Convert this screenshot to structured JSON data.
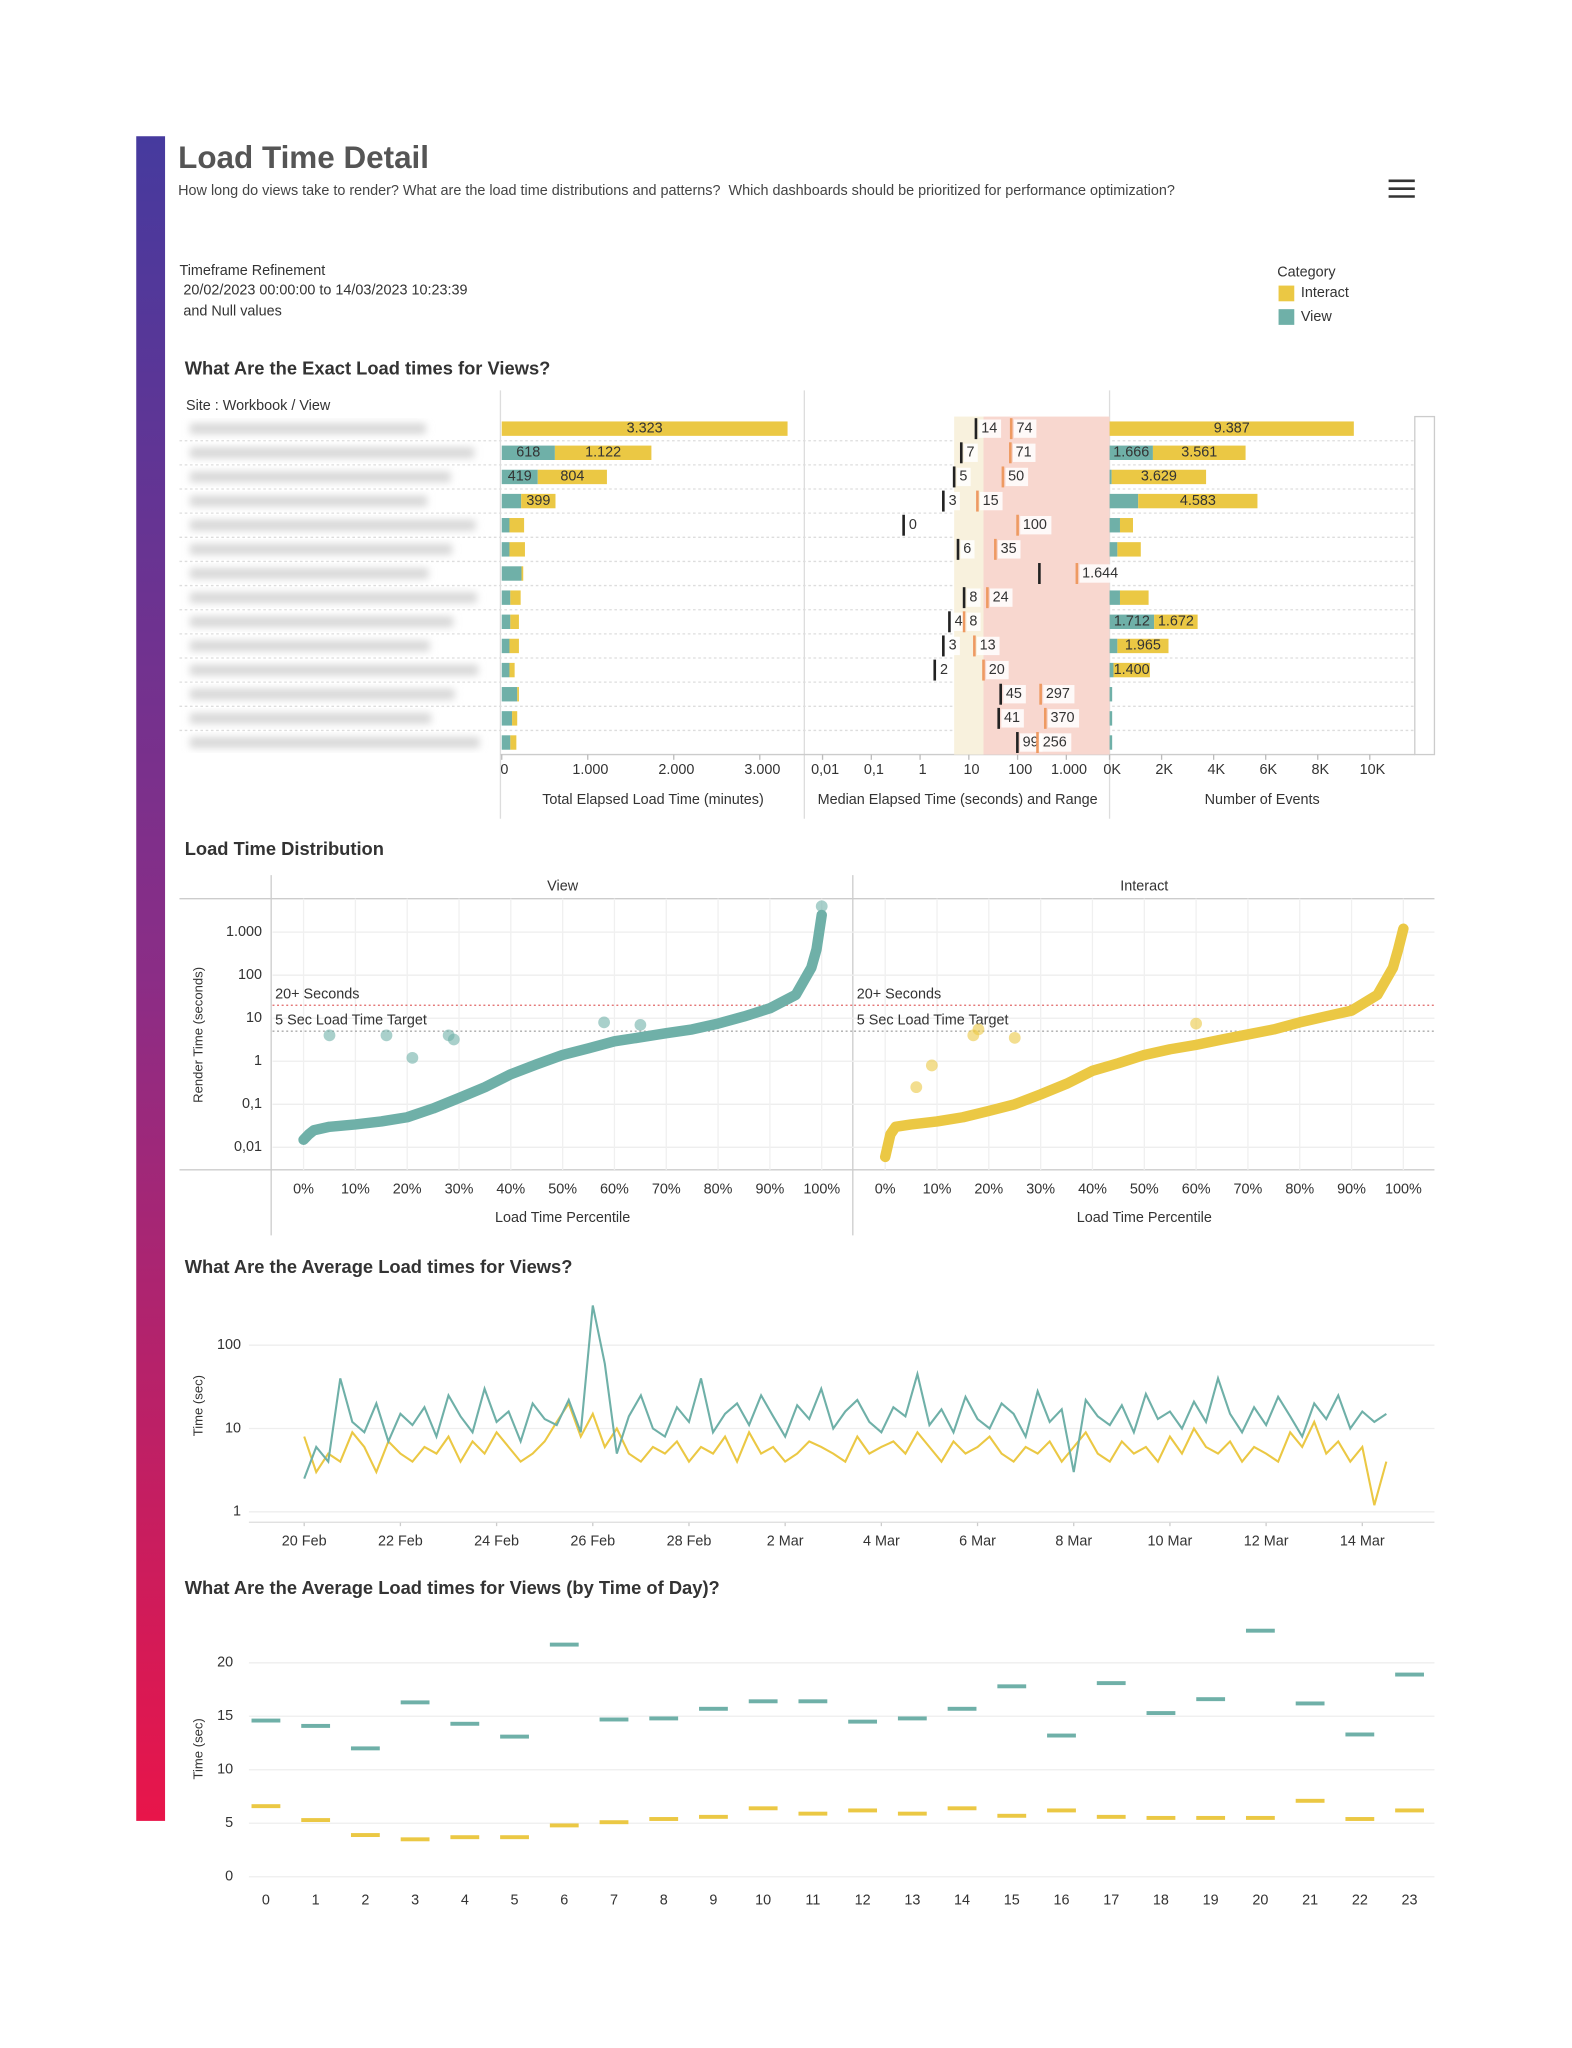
{
  "header": {
    "title": "Load Time Detail",
    "subtitle": "How long do views take to render? What are the load time distributions and patterns?  Which dashboards should be prioritized for performance optimization?"
  },
  "filter": {
    "label": "Timeframe Refinement",
    "range": "20/02/2023 00:00:00 to 14/03/2023 10:23:39",
    "note": "and Null values"
  },
  "legend": {
    "title": "Category",
    "items": [
      {
        "name": "Interact",
        "color": "#ebc844"
      },
      {
        "name": "View",
        "color": "#6fb0a8"
      }
    ]
  },
  "chart_data": [
    {
      "type": "hbar",
      "title": "What Are the Exact Load times for Views?",
      "row_header": "Site : Workbook / View",
      "xlabel": "Total Elapsed Load Time (minutes)",
      "xlim": [
        0,
        3518
      ],
      "xticks": [
        0,
        {
          "value": 1000,
          "label": "1.000"
        },
        {
          "value": 2000,
          "label": "2.000"
        },
        {
          "value": 3000,
          "label": "3.000"
        }
      ],
      "series": [
        {
          "color": "#6fb0a8",
          "values": [
            0,
            618,
            419,
            226,
            90,
            90,
            230,
            100,
            100,
            90,
            90,
            180,
            120,
            100
          ],
          "value_labels": [
            null,
            "618",
            "419",
            null,
            null,
            null,
            null,
            null,
            null,
            null,
            null,
            null,
            null,
            null
          ]
        },
        {
          "color": "#ebc844",
          "values": [
            3323,
            1122,
            804,
            399,
            170,
            180,
            20,
            120,
            100,
            110,
            60,
            20,
            60,
            70
          ],
          "value_labels": [
            "3.323",
            "1.122",
            "804",
            "399",
            null,
            null,
            null,
            null,
            null,
            null,
            null,
            null,
            null,
            null
          ]
        }
      ]
    },
    {
      "type": "range",
      "xlabel": "Median Elapsed Time (seconds) and Range",
      "xlog": true,
      "xlim": [
        0.0045,
        7700
      ],
      "xticks": [
        {
          "value": 0.01,
          "label": "0,01"
        },
        {
          "value": 0.1,
          "label": "0,1"
        },
        1,
        10,
        100,
        {
          "value": 1000,
          "label": "1.000"
        }
      ],
      "bands": [
        {
          "from": 5,
          "to": 20,
          "color": "#f8f1dd"
        },
        {
          "from": 20,
          "color": "#f8d7cf"
        }
      ],
      "series": [
        {
          "color": "#222222",
          "values": [
            14,
            7,
            5,
            3,
            0.46,
            6,
            280,
            8,
            4,
            3,
            2,
            45,
            41,
            99
          ],
          "value_labels": [
            "14",
            "7",
            "5",
            "3",
            "0",
            "6",
            null,
            "8",
            "4",
            "3",
            "2",
            "45",
            "41",
            "99"
          ]
        },
        {
          "color": "#ee9a62",
          "values": [
            74,
            71,
            50,
            15,
            100,
            35,
            1644,
            24,
            8,
            13,
            20,
            297,
            370,
            256
          ],
          "value_labels": [
            "74",
            "71",
            "50",
            "15",
            "100",
            "35",
            "1.644",
            "24",
            "8",
            "13",
            "20",
            "297",
            "370",
            "256"
          ]
        }
      ]
    },
    {
      "type": "hbar",
      "xlabel": "Number of Events",
      "xlim": [
        0,
        11730
      ],
      "xticks": [
        {
          "value": 0,
          "label": "0K"
        },
        {
          "value": 2000,
          "label": "2K"
        },
        {
          "value": 4000,
          "label": "4K"
        },
        {
          "value": 6000,
          "label": "6K"
        },
        {
          "value": 8000,
          "label": "8K"
        },
        {
          "value": 10000,
          "label": "10K"
        }
      ],
      "series": [
        {
          "color": "#6fb0a8",
          "values": [
            0,
            1666,
            80,
            1100,
            400,
            300,
            0,
            400,
            1712,
            300,
            150,
            100,
            100,
            100
          ],
          "value_labels": [
            null,
            "1.666",
            null,
            null,
            null,
            null,
            null,
            null,
            "1.712",
            null,
            null,
            null,
            null,
            null
          ]
        },
        {
          "color": "#ebc844",
          "values": [
            9387,
            3561,
            3629,
            4583,
            500,
            900,
            0,
            1100,
            1672,
            1965,
            1400,
            0,
            0,
            0
          ],
          "value_labels": [
            "9.387",
            "3.561",
            "3.629",
            "4.583",
            null,
            null,
            null,
            null,
            "1.672",
            "1.965",
            "1.400",
            null,
            null,
            null
          ]
        }
      ]
    },
    {
      "type": "scatter",
      "title": "Load Time Distribution",
      "ylabel": "Render Time (seconds)",
      "xlabel": "Load Time Percentile",
      "ylog": true,
      "ylim": [
        0.003,
        6000
      ],
      "yticks": [
        {
          "value": 0.01,
          "label": "0,01"
        },
        {
          "value": 0.1,
          "label": "0,1"
        },
        1,
        10,
        100,
        {
          "value": 1000,
          "label": "1.000"
        }
      ],
      "xlim": [
        -6,
        106
      ],
      "xticks": [
        {
          "value": 0,
          "label": "0%"
        },
        {
          "value": 10,
          "label": "10%"
        },
        {
          "value": 20,
          "label": "20%"
        },
        {
          "value": 30,
          "label": "30%"
        },
        {
          "value": 40,
          "label": "40%"
        },
        {
          "value": 50,
          "label": "50%"
        },
        {
          "value": 60,
          "label": "60%"
        },
        {
          "value": 70,
          "label": "70%"
        },
        {
          "value": 80,
          "label": "80%"
        },
        {
          "value": 90,
          "label": "90%"
        },
        {
          "value": 100,
          "label": "100%"
        }
      ],
      "reference_lines": [
        {
          "value": 20,
          "label": "20+ Seconds",
          "color": "#e06666"
        },
        {
          "value": 5,
          "label": "5 Sec Load Time Target",
          "color": "#aaaaaa"
        }
      ],
      "facets": [
        {
          "name": "View",
          "color": "#6fb0a8",
          "x": [
            0,
            1,
            2,
            5,
            10,
            15,
            20,
            25,
            30,
            35,
            40,
            45,
            50,
            55,
            60,
            65,
            70,
            75,
            80,
            85,
            90,
            95,
            98,
            99,
            100
          ],
          "values": [
            0.015,
            0.02,
            0.025,
            0.03,
            0.034,
            0.04,
            0.05,
            0.08,
            0.14,
            0.25,
            0.5,
            0.85,
            1.4,
            2,
            2.9,
            3.6,
            4.5,
            5.5,
            7.5,
            11,
            17,
            35,
            150,
            400,
            2500
          ],
          "outlier_x": [
            5,
            16,
            21,
            28,
            29,
            58,
            65,
            100
          ],
          "outlier_values": [
            4,
            4,
            1.2,
            4,
            3.2,
            8,
            7,
            4000
          ]
        },
        {
          "name": "Interact",
          "color": "#ebc844",
          "x": [
            0,
            1,
            2,
            5,
            10,
            15,
            20,
            25,
            30,
            35,
            40,
            45,
            50,
            55,
            60,
            65,
            70,
            75,
            80,
            85,
            90,
            95,
            98,
            99,
            100
          ],
          "values": [
            0.006,
            0.02,
            0.03,
            0.034,
            0.04,
            0.05,
            0.07,
            0.1,
            0.17,
            0.3,
            0.6,
            0.9,
            1.4,
            1.9,
            2.4,
            3.2,
            4.2,
            5.5,
            8,
            11,
            15,
            35,
            150,
            400,
            1200
          ],
          "outlier_x": [
            6,
            9,
            17,
            18,
            25,
            60
          ],
          "outlier_values": [
            0.25,
            0.8,
            4,
            5.5,
            3.5,
            7.5
          ]
        }
      ]
    },
    {
      "type": "line",
      "title": "What Are the Average Load times for Views?",
      "ylabel": "Time (sec)",
      "ylog": true,
      "ylim": [
        0.75,
        380
      ],
      "yticks": [
        1,
        10,
        100
      ],
      "xlim": [
        -1.15,
        23.5
      ],
      "xticks": [
        {
          "value": 0,
          "label": "20 Feb"
        },
        {
          "value": 2,
          "label": "22 Feb"
        },
        {
          "value": 4,
          "label": "24 Feb"
        },
        {
          "value": 6,
          "label": "26 Feb"
        },
        {
          "value": 8,
          "label": "28 Feb"
        },
        {
          "value": 10,
          "label": "2 Mar"
        },
        {
          "value": 12,
          "label": "4 Mar"
        },
        {
          "value": 14,
          "label": "6 Mar"
        },
        {
          "value": 16,
          "label": "8 Mar"
        },
        {
          "value": 18,
          "label": "10 Mar"
        },
        {
          "value": 20,
          "label": "12 Mar"
        },
        {
          "value": 22,
          "label": "14 Mar"
        }
      ],
      "x": [
        0,
        0.25,
        0.5,
        0.75,
        1,
        1.25,
        1.5,
        1.75,
        2,
        2.25,
        2.5,
        2.75,
        3,
        3.25,
        3.5,
        3.75,
        4,
        4.25,
        4.5,
        4.75,
        5,
        5.25,
        5.5,
        5.75,
        6,
        6.25,
        6.5,
        6.75,
        7,
        7.25,
        7.5,
        7.75,
        8,
        8.25,
        8.5,
        8.75,
        9,
        9.25,
        9.5,
        9.75,
        10,
        10.25,
        10.5,
        10.75,
        11,
        11.25,
        11.5,
        11.75,
        12,
        12.25,
        12.5,
        12.75,
        13,
        13.25,
        13.5,
        13.75,
        14,
        14.25,
        14.5,
        14.75,
        15,
        15.25,
        15.5,
        15.75,
        16,
        16.25,
        16.5,
        16.75,
        17,
        17.25,
        17.5,
        17.75,
        18,
        18.25,
        18.5,
        18.75,
        19,
        19.25,
        19.5,
        19.75,
        20,
        20.25,
        20.5,
        20.75,
        21,
        21.25,
        21.5,
        21.75,
        22,
        22.25,
        22.5
      ],
      "series": [
        {
          "color": "#ebc844",
          "values": [
            8,
            3,
            5,
            4,
            9,
            6,
            3,
            7,
            5,
            4,
            6,
            5,
            8,
            4,
            7,
            5,
            9,
            6,
            4,
            5,
            7,
            12,
            20,
            8,
            15,
            6,
            10,
            5,
            4,
            6,
            5,
            7,
            4,
            6,
            5,
            8,
            4,
            9,
            5,
            6,
            4,
            5,
            7,
            6,
            5,
            4,
            8,
            5,
            6,
            7,
            5,
            9,
            6,
            4,
            7,
            5,
            6,
            8,
            5,
            4,
            6,
            5,
            7,
            4,
            6,
            9,
            5,
            4,
            7,
            5,
            6,
            4,
            8,
            5,
            10,
            6,
            5,
            7,
            4,
            6,
            5,
            4,
            9,
            6,
            12,
            5,
            7,
            4,
            6,
            1.2,
            4
          ]
        },
        {
          "color": "#6fb0a8",
          "values": [
            2.5,
            6,
            4,
            40,
            12,
            9,
            20,
            7,
            15,
            11,
            18,
            8,
            25,
            14,
            9,
            30,
            12,
            16,
            7,
            20,
            13,
            11,
            22,
            9,
            300,
            60,
            5,
            14,
            25,
            10,
            8,
            18,
            12,
            40,
            9,
            15,
            20,
            11,
            25,
            14,
            8,
            19,
            13,
            30,
            10,
            16,
            22,
            12,
            9,
            18,
            14,
            45,
            11,
            17,
            9,
            24,
            13,
            10,
            20,
            15,
            8,
            28,
            12,
            17,
            3,
            22,
            14,
            11,
            19,
            9,
            26,
            13,
            16,
            10,
            21,
            12,
            40,
            15,
            9,
            18,
            11,
            24,
            14,
            8,
            20,
            13,
            25,
            10,
            16,
            12,
            15
          ]
        }
      ]
    },
    {
      "type": "dash",
      "title": "What Are the Average Load times for Views (by Time of Day)?",
      "ylabel": "Time (sec)",
      "ylim": [
        -0.9,
        24.2
      ],
      "yticks": [
        0,
        5,
        10,
        15,
        20
      ],
      "categories": [
        "0",
        "1",
        "2",
        "3",
        "4",
        "5",
        "6",
        "7",
        "8",
        "9",
        "10",
        "11",
        "12",
        "13",
        "14",
        "15",
        "16",
        "17",
        "18",
        "19",
        "20",
        "21",
        "22",
        "23"
      ],
      "series": [
        {
          "color": "#6fb0a8",
          "values": [
            14.6,
            14.1,
            12,
            16.3,
            14.3,
            13.1,
            21.7,
            14.7,
            14.8,
            15.7,
            16.4,
            16.4,
            14.5,
            14.8,
            15.7,
            17.8,
            13.2,
            18.1,
            15.3,
            16.6,
            23,
            16.2,
            13.3,
            18.9
          ]
        },
        {
          "color": "#ebc844",
          "values": [
            6.6,
            5.3,
            3.9,
            3.5,
            3.7,
            3.7,
            4.8,
            5.1,
            5.4,
            5.6,
            6.4,
            5.9,
            6.2,
            5.9,
            6.4,
            5.7,
            6.2,
            5.6,
            5.5,
            5.5,
            5.5,
            7.1,
            5.4,
            6.2
          ]
        }
      ]
    }
  ]
}
